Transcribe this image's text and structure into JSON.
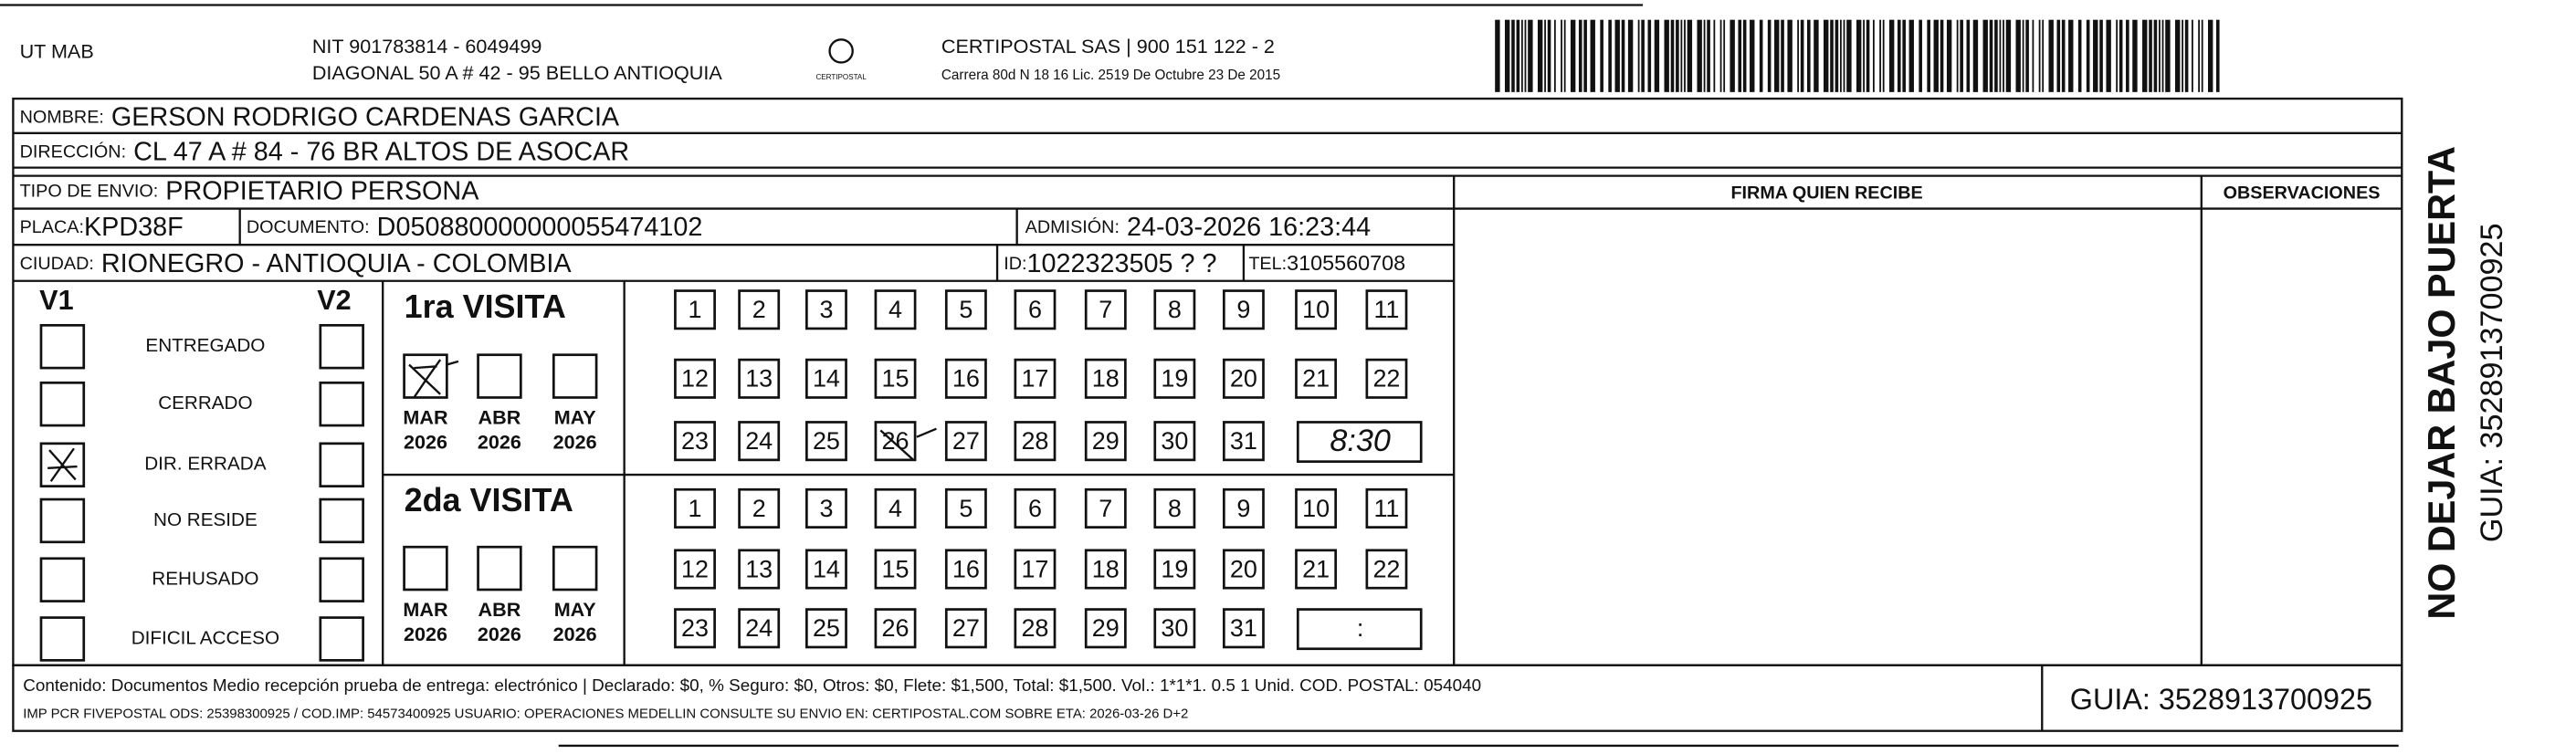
{
  "header": {
    "code": "UT MAB",
    "company": [
      "NIT 901783814 - 6049499",
      "DIAGONAL 50 A # 42 - 95 BELLO  ANTIOQUIA"
    ],
    "logo": "CERTIPOSTAL",
    "courier": [
      "CERTIPOSTAL SAS | 900 151 122 - 2",
      "Carrera 80d N 18 16  Lic. 2519 De Octubre 23 De 2015"
    ]
  },
  "fields": {
    "nombre": {
      "label": "NOMBRE:",
      "value": "GERSON RODRIGO CARDENAS GARCIA"
    },
    "direccion": {
      "label": "DIRECCIÓN:",
      "value": "CL 47 A # 84 - 76 BR ALTOS DE ASOCAR"
    },
    "tipo": {
      "label": "TIPO DE ENVIO:",
      "value": "PROPIETARIO PERSONA"
    },
    "placa": {
      "label": "PLACA:",
      "value": "KPD38F"
    },
    "documento": {
      "label": "DOCUMENTO:",
      "value": "D050880000000055474102"
    },
    "admision": {
      "label": "ADMISIÓN:",
      "value": "24-03-2026 16:23:44"
    },
    "ciudad": {
      "label": "CIUDAD:",
      "value": "RIONEGRO - ANTIOQUIA - COLOMBIA"
    },
    "id": {
      "label": "ID:",
      "value": "1022323505 ? ?"
    },
    "tel": {
      "label": "TEL:",
      "value": "3105560708"
    }
  },
  "columns": [
    "FIRMA QUIEN RECIBE",
    "OBSERVACIONES"
  ],
  "side": [
    "NO DEJAR BAJO PUERTA",
    "GUIA: 3528913700925"
  ],
  "status": {
    "v1": "V1",
    "v2": "V2",
    "items": [
      "ENTREGADO",
      "CERRADO",
      "DIR. ERRADA",
      "NO RESIDE",
      "REHUSADO",
      "DIFICIL ACCESO"
    ]
  },
  "visits": [
    {
      "title": "1ra VISITA",
      "months": [
        {
          "month": "MAR",
          "year": "2026"
        },
        {
          "month": "ABR",
          "year": "2026"
        },
        {
          "month": "MAY",
          "year": "2026"
        }
      ],
      "days": [
        1,
        2,
        3,
        4,
        5,
        6,
        7,
        8,
        9,
        10,
        11,
        12,
        13,
        14,
        15,
        16,
        17,
        18,
        19,
        20,
        21,
        22,
        23,
        24,
        25,
        26,
        27,
        28,
        29,
        30,
        31
      ],
      "time": "8:30"
    },
    {
      "title": "2da VISITA",
      "months": [
        {
          "month": "MAR",
          "year": "2026"
        },
        {
          "month": "ABR",
          "year": "2026"
        },
        {
          "month": "MAY",
          "year": "2026"
        }
      ],
      "days": [
        1,
        2,
        3,
        4,
        5,
        6,
        7,
        8,
        9,
        10,
        11,
        12,
        13,
        14,
        15,
        16,
        17,
        18,
        19,
        20,
        21,
        22,
        23,
        24,
        25,
        26,
        27,
        28,
        29,
        30,
        31
      ],
      "time": ":"
    }
  ],
  "footer": {
    "lines": [
      "Contenido: Documentos Medio recepción prueba de entrega: electrónico | Declarado: $0, % Seguro: $0, Otros: $0, Flete: $1,500, Total: $1,500. Vol.: 1*1*1. 0.5  1 Unid. COD. POSTAL: 054040",
      "IMP PCR FIVEPOSTAL ODS: 25398300925 / COD.IMP: 54573400925 USUARIO: OPERACIONES MEDELLIN CONSULTE SU ENVIO EN: CERTIPOSTAL.COM SOBRE ETA: 2026-03-26 D+2"
    ],
    "guia": "GUIA: 3528913700925"
  }
}
